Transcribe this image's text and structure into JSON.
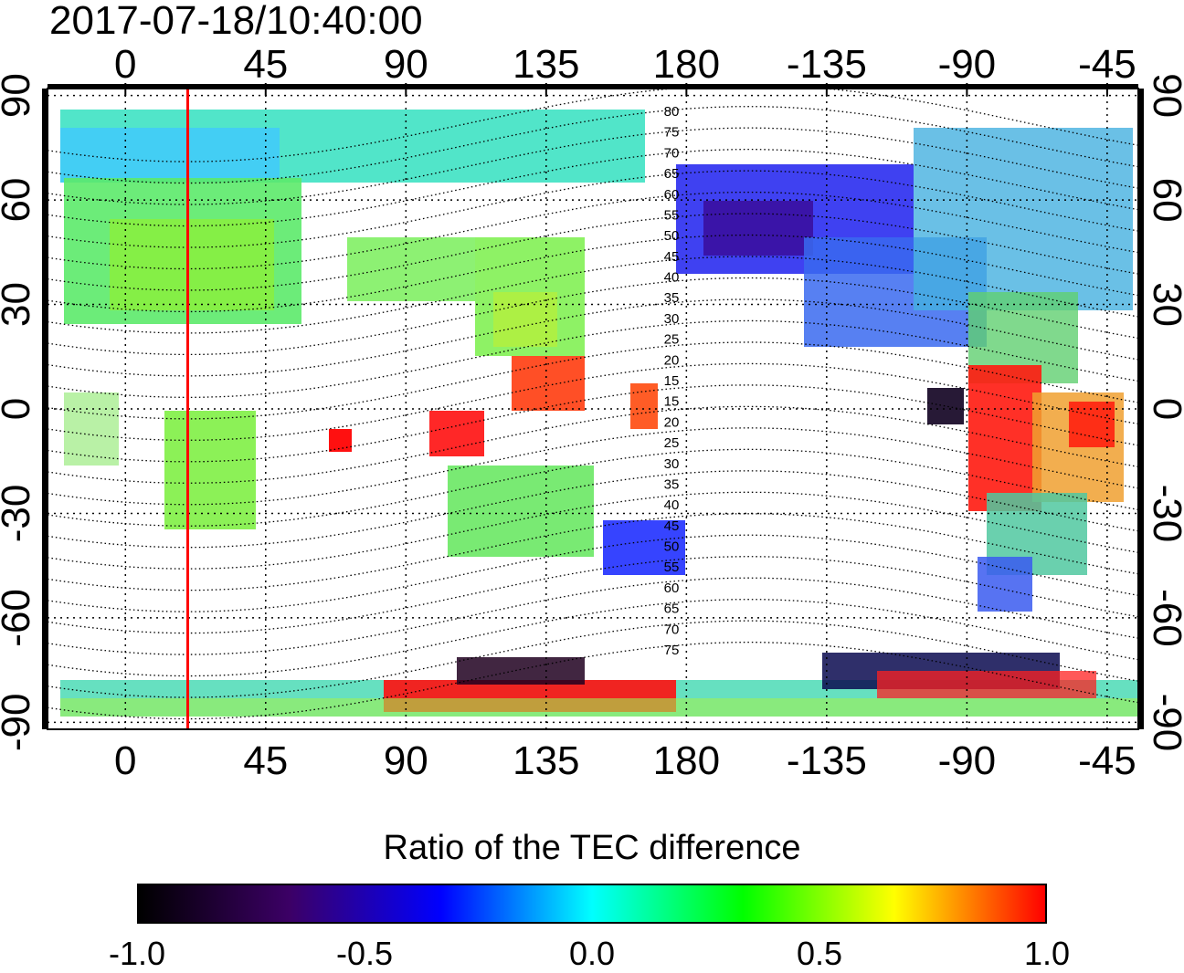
{
  "header": {
    "timestamp": "2017-07-18/10:40:00"
  },
  "map": {
    "projection": "equirectangular",
    "lon_range": [
      -25,
      325
    ],
    "lat_range": [
      -92,
      92
    ],
    "x_ticks": [
      {
        "lon": 0,
        "label": "0"
      },
      {
        "lon": 45,
        "label": "45"
      },
      {
        "lon": 90,
        "label": "90"
      },
      {
        "lon": 135,
        "label": "135"
      },
      {
        "lon": 180,
        "label": "180"
      },
      {
        "lon": 225,
        "label": "-135"
      },
      {
        "lon": 270,
        "label": "-90"
      },
      {
        "lon": 315,
        "label": "-45"
      }
    ],
    "y_ticks": [
      {
        "lat": 90,
        "label": "90"
      },
      {
        "lat": 60,
        "label": "60"
      },
      {
        "lat": 30,
        "label": "30"
      },
      {
        "lat": 0,
        "label": "0"
      },
      {
        "lat": -30,
        "label": "-30"
      },
      {
        "lat": -60,
        "label": "-60"
      },
      {
        "lat": -90,
        "label": "-90"
      }
    ],
    "terminator_lon": 20,
    "terminator_color": "#ff0000",
    "magnetic_lat_labels": [
      "80",
      "75",
      "70",
      "65",
      "60",
      "55",
      "50",
      "45",
      "40",
      "35",
      "30",
      "25",
      "20",
      "15",
      "15",
      "20",
      "25",
      "30",
      "35",
      "40",
      "45",
      "50",
      "55",
      "60",
      "65",
      "70",
      "75"
    ]
  },
  "colorbar": {
    "title": "Ratio of the TEC difference",
    "min": -1.0,
    "max": 1.0,
    "tick_labels": [
      "-1.0",
      "-0.5",
      "0.0",
      "0.5",
      "1.0"
    ],
    "colors": [
      "#000000",
      "#3c0066",
      "#0000ff",
      "#00ffff",
      "#00ff00",
      "#ffff00",
      "#ff0000"
    ]
  }
}
